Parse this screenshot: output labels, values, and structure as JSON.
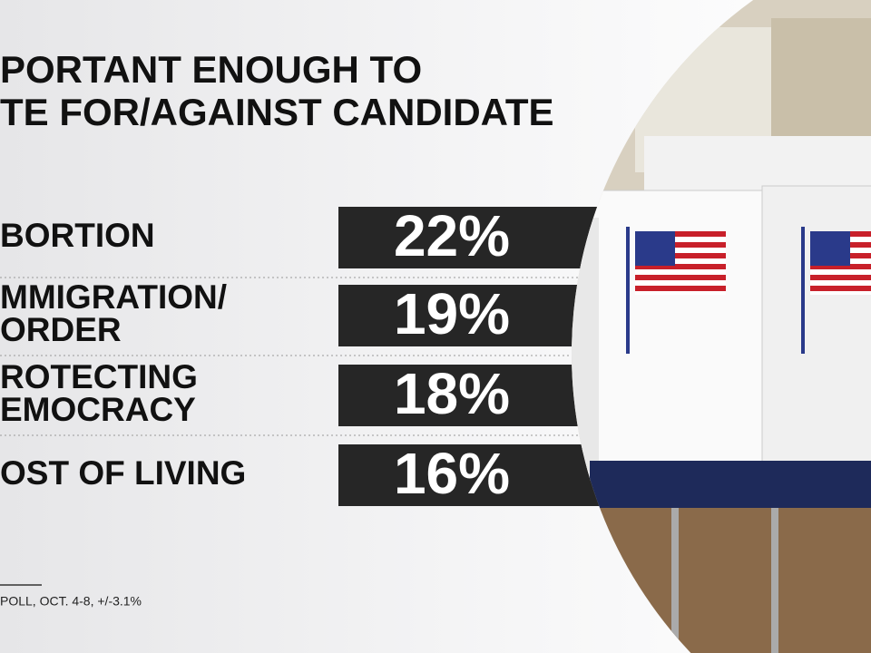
{
  "header": {
    "title": [
      "PORTANT ENOUGH TO",
      "TE FOR/AGAINST CANDIDATE"
    ]
  },
  "rows": [
    {
      "label": [
        "BORTION"
      ],
      "value": "22%"
    },
    {
      "label": [
        "MMIGRATION/",
        "ORDER"
      ],
      "value": "19%"
    },
    {
      "label": [
        "ROTECTING",
        "EMOCRACY"
      ],
      "value": "18%"
    },
    {
      "label": [
        "OST OF LIVING"
      ],
      "value": "16%"
    }
  ],
  "footnote": "POLL, OCT. 4-8, +/-3.1%"
}
